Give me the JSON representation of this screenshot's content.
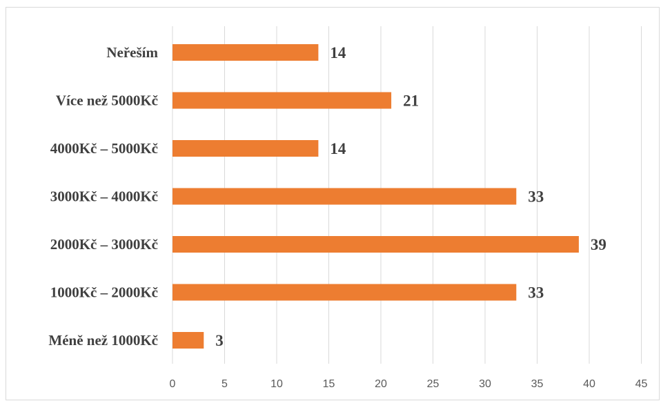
{
  "chart_data": {
    "type": "bar",
    "orientation": "horizontal",
    "categories": [
      "Neřeším",
      "Více než 5000Kč",
      "4000Kč – 5000Kč",
      "3000Kč – 4000Kč",
      "2000Kč – 3000Kč",
      "1000Kč – 2000Kč",
      "Méně než 1000Kč"
    ],
    "values": [
      14,
      21,
      14,
      33,
      39,
      33,
      3
    ],
    "xlim": [
      0,
      45
    ],
    "xticks": [
      0,
      5,
      10,
      15,
      20,
      25,
      30,
      35,
      40,
      45
    ],
    "data_labels": true,
    "grid": "vertical",
    "legend": "none",
    "bar_color": "#ED7D31",
    "title": "",
    "xlabel": "",
    "ylabel": ""
  }
}
